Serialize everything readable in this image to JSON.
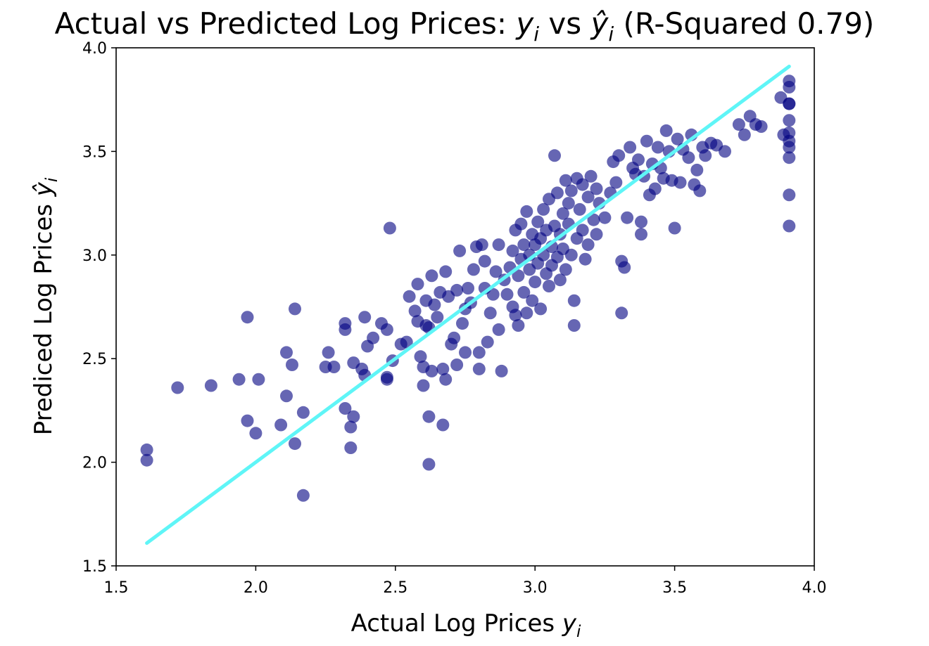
{
  "chart_data": {
    "type": "scatter",
    "title": {
      "main": "Actual vs Predicted Log Prices: ",
      "y_sym": "y",
      "y_sub": "i",
      "vs": " vs ",
      "yhat_sym": "ŷ",
      "yhat_sub": "i",
      "rsq": " (R-Squared 0.79)"
    },
    "xlabel": {
      "text": "Actual Log Prices ",
      "sym": "y",
      "sub": "i"
    },
    "ylabel": {
      "text": "Prediced Log Prices ",
      "sym": "ŷ",
      "sub": "i"
    },
    "xlim": [
      1.5,
      4.0
    ],
    "ylim": [
      1.5,
      4.0
    ],
    "x_ticks": [
      1.5,
      2.0,
      2.5,
      3.0,
      3.5,
      4.0
    ],
    "y_ticks": [
      1.5,
      2.0,
      2.5,
      3.0,
      3.5,
      4.0
    ],
    "x_tick_labels": [
      "1.5",
      "2.0",
      "2.5",
      "3.0",
      "3.5",
      "4.0"
    ],
    "y_tick_labels": [
      "1.5",
      "2.0",
      "2.5",
      "3.0",
      "3.5",
      "4.0"
    ],
    "grid": false,
    "colors": {
      "points": "#000080",
      "fit_line": "#5ff5f7"
    },
    "fit_line": {
      "x": [
        1.61,
        3.91
      ],
      "y": [
        1.61,
        3.91
      ]
    },
    "points": [
      [
        1.61,
        2.06
      ],
      [
        1.61,
        2.01
      ],
      [
        1.72,
        2.36
      ],
      [
        1.84,
        2.37
      ],
      [
        1.94,
        2.4
      ],
      [
        1.97,
        2.7
      ],
      [
        1.97,
        2.2
      ],
      [
        2.0,
        2.14
      ],
      [
        2.01,
        2.4
      ],
      [
        2.09,
        2.18
      ],
      [
        2.11,
        2.32
      ],
      [
        2.11,
        2.53
      ],
      [
        2.13,
        2.47
      ],
      [
        2.14,
        2.74
      ],
      [
        2.14,
        2.09
      ],
      [
        2.17,
        2.24
      ],
      [
        2.17,
        1.84
      ],
      [
        2.25,
        2.46
      ],
      [
        2.26,
        2.53
      ],
      [
        2.28,
        2.46
      ],
      [
        2.32,
        2.64
      ],
      [
        2.32,
        2.67
      ],
      [
        2.32,
        2.26
      ],
      [
        2.34,
        2.17
      ],
      [
        2.34,
        2.07
      ],
      [
        2.35,
        2.22
      ],
      [
        2.35,
        2.48
      ],
      [
        2.38,
        2.45
      ],
      [
        2.39,
        2.42
      ],
      [
        2.39,
        2.7
      ],
      [
        2.4,
        2.56
      ],
      [
        2.42,
        2.6
      ],
      [
        2.45,
        2.67
      ],
      [
        2.47,
        2.64
      ],
      [
        2.47,
        2.41
      ],
      [
        2.47,
        2.4
      ],
      [
        2.48,
        3.13
      ],
      [
        2.49,
        2.49
      ],
      [
        2.52,
        2.57
      ],
      [
        2.54,
        2.58
      ],
      [
        2.55,
        2.8
      ],
      [
        2.57,
        2.73
      ],
      [
        2.58,
        2.86
      ],
      [
        2.58,
        2.68
      ],
      [
        2.59,
        2.51
      ],
      [
        2.6,
        2.46
      ],
      [
        2.6,
        2.37
      ],
      [
        2.61,
        2.66
      ],
      [
        2.61,
        2.78
      ],
      [
        2.62,
        2.65
      ],
      [
        2.62,
        2.22
      ],
      [
        2.62,
        1.99
      ],
      [
        2.63,
        2.44
      ],
      [
        2.63,
        2.9
      ],
      [
        2.64,
        2.76
      ],
      [
        2.65,
        2.7
      ],
      [
        2.66,
        2.82
      ],
      [
        2.67,
        2.45
      ],
      [
        2.67,
        2.18
      ],
      [
        2.68,
        2.4
      ],
      [
        2.68,
        2.92
      ],
      [
        2.69,
        2.8
      ],
      [
        2.7,
        2.57
      ],
      [
        2.71,
        2.6
      ],
      [
        2.72,
        2.83
      ],
      [
        2.72,
        2.47
      ],
      [
        2.73,
        3.02
      ],
      [
        2.74,
        2.67
      ],
      [
        2.75,
        2.74
      ],
      [
        2.75,
        2.53
      ],
      [
        2.76,
        2.84
      ],
      [
        2.77,
        2.77
      ],
      [
        2.78,
        2.93
      ],
      [
        2.79,
        3.04
      ],
      [
        2.8,
        2.45
      ],
      [
        2.8,
        2.53
      ],
      [
        2.81,
        3.05
      ],
      [
        2.82,
        2.84
      ],
      [
        2.82,
        2.97
      ],
      [
        2.83,
        2.58
      ],
      [
        2.84,
        2.72
      ],
      [
        2.85,
        2.81
      ],
      [
        2.86,
        2.92
      ],
      [
        2.87,
        2.64
      ],
      [
        2.87,
        3.05
      ],
      [
        2.88,
        2.44
      ],
      [
        2.89,
        2.88
      ],
      [
        2.9,
        2.81
      ],
      [
        2.91,
        2.94
      ],
      [
        2.92,
        2.75
      ],
      [
        2.92,
        3.02
      ],
      [
        2.93,
        2.71
      ],
      [
        2.93,
        3.12
      ],
      [
        2.94,
        2.66
      ],
      [
        2.94,
        2.9
      ],
      [
        2.95,
        2.98
      ],
      [
        2.95,
        3.15
      ],
      [
        2.96,
        3.05
      ],
      [
        2.96,
        2.82
      ],
      [
        2.97,
        2.72
      ],
      [
        2.97,
        3.21
      ],
      [
        2.98,
        3.0
      ],
      [
        2.98,
        2.93
      ],
      [
        2.99,
        3.1
      ],
      [
        2.99,
        2.78
      ],
      [
        3.0,
        3.05
      ],
      [
        3.0,
        2.87
      ],
      [
        3.01,
        3.16
      ],
      [
        3.01,
        2.96
      ],
      [
        3.02,
        3.08
      ],
      [
        3.02,
        2.74
      ],
      [
        3.03,
        3.0
      ],
      [
        3.03,
        3.22
      ],
      [
        3.04,
        2.91
      ],
      [
        3.04,
        3.12
      ],
      [
        3.05,
        3.27
      ],
      [
        3.05,
        2.85
      ],
      [
        3.06,
        3.04
      ],
      [
        3.06,
        2.95
      ],
      [
        3.07,
        3.14
      ],
      [
        3.07,
        3.48
      ],
      [
        3.08,
        2.99
      ],
      [
        3.08,
        3.3
      ],
      [
        3.09,
        2.88
      ],
      [
        3.09,
        3.1
      ],
      [
        3.1,
        3.2
      ],
      [
        3.1,
        3.03
      ],
      [
        3.11,
        3.36
      ],
      [
        3.11,
        2.93
      ],
      [
        3.12,
        3.15
      ],
      [
        3.12,
        3.25
      ],
      [
        3.13,
        3.0
      ],
      [
        3.13,
        3.31
      ],
      [
        3.14,
        2.78
      ],
      [
        3.14,
        2.66
      ],
      [
        3.15,
        3.08
      ],
      [
        3.15,
        3.37
      ],
      [
        3.16,
        3.22
      ],
      [
        3.17,
        3.12
      ],
      [
        3.17,
        3.34
      ],
      [
        3.18,
        2.98
      ],
      [
        3.19,
        3.28
      ],
      [
        3.19,
        3.05
      ],
      [
        3.2,
        3.38
      ],
      [
        3.21,
        3.17
      ],
      [
        3.22,
        3.32
      ],
      [
        3.22,
        3.1
      ],
      [
        3.23,
        3.25
      ],
      [
        3.25,
        3.18
      ],
      [
        3.27,
        3.3
      ],
      [
        3.28,
        3.45
      ],
      [
        3.29,
        3.35
      ],
      [
        3.3,
        3.48
      ],
      [
        3.31,
        2.97
      ],
      [
        3.31,
        2.72
      ],
      [
        3.32,
        2.94
      ],
      [
        3.33,
        3.18
      ],
      [
        3.34,
        3.52
      ],
      [
        3.35,
        3.42
      ],
      [
        3.36,
        3.39
      ],
      [
        3.37,
        3.46
      ],
      [
        3.38,
        3.16
      ],
      [
        3.38,
        3.1
      ],
      [
        3.39,
        3.38
      ],
      [
        3.4,
        3.55
      ],
      [
        3.41,
        3.29
      ],
      [
        3.42,
        3.44
      ],
      [
        3.43,
        3.32
      ],
      [
        3.44,
        3.52
      ],
      [
        3.45,
        3.42
      ],
      [
        3.46,
        3.37
      ],
      [
        3.47,
        3.6
      ],
      [
        3.48,
        3.5
      ],
      [
        3.49,
        3.36
      ],
      [
        3.5,
        3.13
      ],
      [
        3.51,
        3.56
      ],
      [
        3.52,
        3.35
      ],
      [
        3.53,
        3.51
      ],
      [
        3.55,
        3.47
      ],
      [
        3.56,
        3.58
      ],
      [
        3.57,
        3.34
      ],
      [
        3.58,
        3.41
      ],
      [
        3.59,
        3.31
      ],
      [
        3.6,
        3.52
      ],
      [
        3.61,
        3.48
      ],
      [
        3.63,
        3.54
      ],
      [
        3.65,
        3.53
      ],
      [
        3.68,
        3.5
      ],
      [
        3.73,
        3.63
      ],
      [
        3.75,
        3.58
      ],
      [
        3.77,
        3.67
      ],
      [
        3.79,
        3.63
      ],
      [
        3.81,
        3.62
      ],
      [
        3.88,
        3.76
      ],
      [
        3.89,
        3.58
      ],
      [
        3.91,
        3.84
      ],
      [
        3.91,
        3.81
      ],
      [
        3.91,
        3.73
      ],
      [
        3.91,
        3.73
      ],
      [
        3.91,
        3.65
      ],
      [
        3.91,
        3.59
      ],
      [
        3.91,
        3.55
      ],
      [
        3.91,
        3.52
      ],
      [
        3.91,
        3.47
      ],
      [
        3.91,
        3.29
      ],
      [
        3.91,
        3.14
      ]
    ]
  }
}
